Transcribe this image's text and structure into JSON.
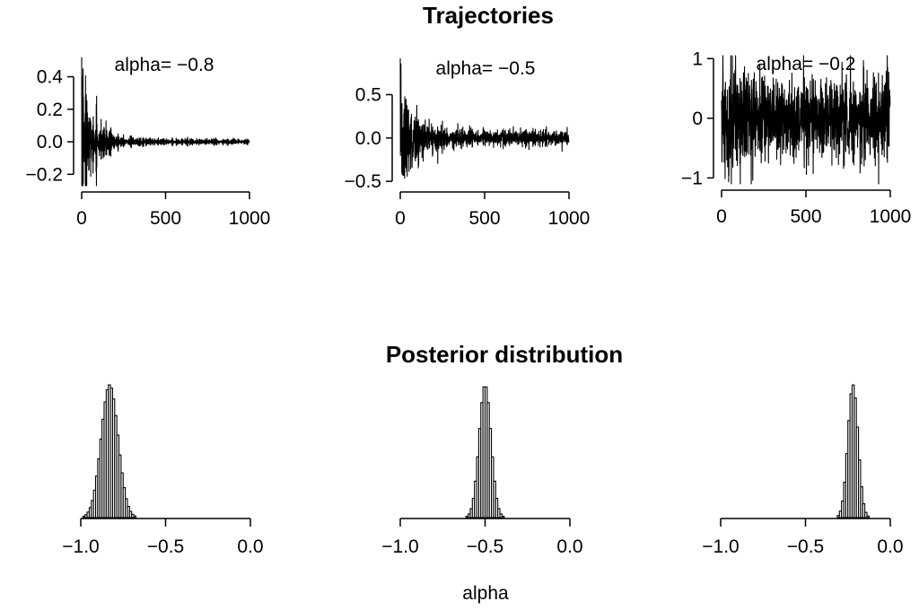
{
  "figure": {
    "top_title": "Trajectories",
    "bottom_title": "Posterior distribution",
    "bottom_xlabel": "alpha"
  },
  "chart_data": [
    {
      "type": "line",
      "title": "",
      "annotation": "alpha= −0.8",
      "alpha": -0.8,
      "x_range": [
        0,
        1000
      ],
      "y_range": [
        -0.27,
        0.53
      ],
      "xticks": [
        0,
        500,
        1000
      ],
      "xtick_labels": [
        "0",
        "500",
        "1000"
      ],
      "yticks": [
        -0.2,
        0.0,
        0.2,
        0.4
      ],
      "ytick_labels": [
        "−0.2",
        "0.0",
        "0.2",
        "0.4"
      ],
      "initial_value": 0.52,
      "envelope_start": 0.25,
      "envelope_end": 0.01,
      "n_points": 1000
    },
    {
      "type": "line",
      "title": "",
      "annotation": "alpha= −0.5",
      "alpha": -0.5,
      "x_range": [
        0,
        1000
      ],
      "y_range": [
        -0.55,
        0.95
      ],
      "xticks": [
        0,
        500,
        1000
      ],
      "xtick_labels": [
        "0",
        "500",
        "1000"
      ],
      "yticks": [
        -0.5,
        0.0,
        0.5
      ],
      "ytick_labels": [
        "−0.5",
        "0.0",
        "0.5"
      ],
      "initial_value": 0.92,
      "envelope_start": 0.4,
      "envelope_end": 0.05,
      "n_points": 1000
    },
    {
      "type": "line",
      "title": "",
      "annotation": "alpha= −0.2",
      "alpha": -0.2,
      "x_range": [
        0,
        1000
      ],
      "y_range": [
        -1.1,
        1.05
      ],
      "xticks": [
        0,
        500,
        1000
      ],
      "xtick_labels": [
        "0",
        "500",
        "1000"
      ],
      "yticks": [
        -1,
        0,
        1
      ],
      "ytick_labels": [
        "−1",
        "0",
        "1"
      ],
      "initial_value": 0.3,
      "envelope_start": 0.7,
      "envelope_end": 0.35,
      "n_points": 1000
    },
    {
      "type": "histogram",
      "xlabel": "alpha",
      "x_range": [
        -1.0,
        0.0
      ],
      "xticks": [
        -1.0,
        -0.5,
        0.0
      ],
      "xtick_labels": [
        "−1.0",
        "−0.5",
        "0.0"
      ],
      "mean": -0.83,
      "sd": 0.05,
      "bin_width": 0.0125
    },
    {
      "type": "histogram",
      "xlabel": "alpha",
      "x_range": [
        -1.0,
        0.0
      ],
      "xticks": [
        -1.0,
        -0.5,
        0.0
      ],
      "xtick_labels": [
        "−1.0",
        "−0.5",
        "0.0"
      ],
      "mean": -0.5,
      "sd": 0.035,
      "bin_width": 0.0125
    },
    {
      "type": "histogram",
      "xlabel": "alpha",
      "x_range": [
        -1.0,
        0.0
      ],
      "xticks": [
        -1.0,
        -0.5,
        0.0
      ],
      "xtick_labels": [
        "−1.0",
        "−0.5",
        "0.0"
      ],
      "mean": -0.22,
      "sd": 0.03,
      "bin_width": 0.0125
    }
  ]
}
